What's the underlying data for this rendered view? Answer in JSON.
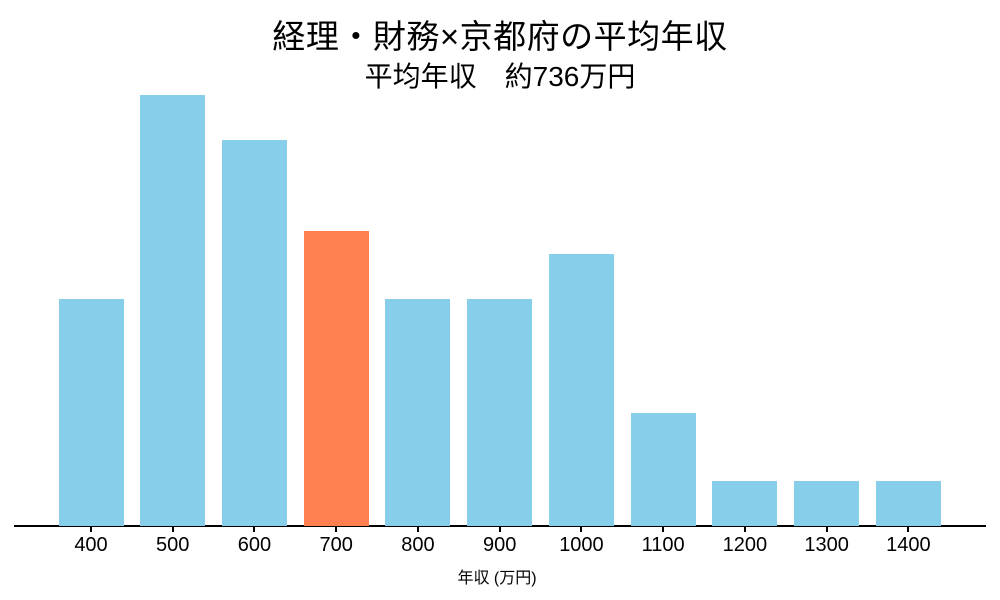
{
  "chart_data": {
    "type": "bar",
    "title": "経理・財務×京都府の平均年収",
    "subtitle": "平均年収　約736万円",
    "xlabel": "年収 (万円)",
    "categories": [
      "400",
      "500",
      "600",
      "700",
      "800",
      "900",
      "1000",
      "1100",
      "1200",
      "1300",
      "1400"
    ],
    "values": [
      10,
      19,
      17,
      13,
      10,
      10,
      12,
      5,
      2,
      2,
      2
    ],
    "highlight_index": 3,
    "highlight_category": "700",
    "colors": {
      "bar": "#87CEEB",
      "highlight": "#FF7F50",
      "axis": "#000000",
      "text": "#000000",
      "background": "#ffffff"
    },
    "ylim": [
      0,
      19.8
    ],
    "grid": false,
    "legend": "none",
    "y_axis_visible": false
  }
}
